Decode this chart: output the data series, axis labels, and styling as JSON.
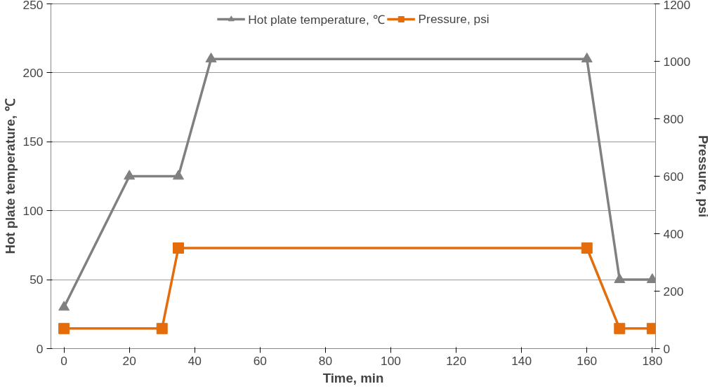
{
  "chart_data": {
    "type": "line",
    "xlabel": "Time, min",
    "ylabel": "Hot plate temperature, ℃",
    "y2label": "Pressure, psi",
    "series": [
      {
        "name": "Hot plate temperature, ℃",
        "color": "#808080",
        "marker": "triangle",
        "x": [
          0,
          20,
          35,
          45,
          160,
          170,
          180
        ],
        "values": [
          30,
          125,
          125,
          210,
          210,
          50,
          50
        ]
      },
      {
        "name": "Pressure, psi",
        "color": "#e46c0a",
        "marker": "square",
        "axis": "y2",
        "x": [
          0,
          30,
          35,
          160,
          170,
          180
        ],
        "values": [
          70,
          70,
          350,
          350,
          70,
          70
        ]
      }
    ],
    "xlim": [
      -4,
      181
    ],
    "xticks": [
      0,
      20,
      40,
      60,
      80,
      100,
      120,
      140,
      160,
      180
    ],
    "ylim": [
      0,
      250
    ],
    "yticks": [
      0,
      50,
      100,
      150,
      200,
      250
    ],
    "y2lim": [
      0,
      1200
    ],
    "y2ticks": [
      0,
      200,
      400,
      600,
      800,
      1000,
      1200
    ],
    "grid": "y",
    "legend": "top"
  }
}
